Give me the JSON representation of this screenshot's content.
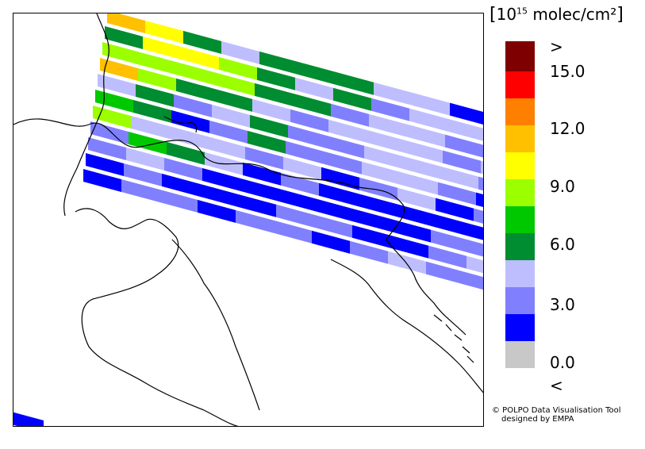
{
  "map": {
    "units_prefix": "[",
    "units_base": "10",
    "units_exp": "15",
    "units_rest": " molec/cm²",
    "units_suffix": "]",
    "credit_line1": "© POLPO Data Visualisation Tool",
    "credit_line2": "designed by EMPA"
  },
  "legend": {
    "labels": [
      ">",
      "15.0",
      "12.0",
      "9.0",
      "6.0",
      "3.0",
      "0.0",
      "<"
    ],
    "colors": [
      "#7f0000",
      "#ff0000",
      "#ff8000",
      "#ffc000",
      "#ffff00",
      "#9cff00",
      "#00c800",
      "#008c30",
      "#bebeff",
      "#8080ff",
      "#0000ff",
      "#c8c8c8"
    ]
  },
  "swaths": {
    "colors": {
      "o": "#ffc000",
      "y": "#ffff00",
      "L": "#9cff00",
      "g": "#00c800",
      "G": "#008c30",
      "l": "#bebeff",
      "m": "#8080ff",
      "b": "#0000ff",
      "r": "#ff0000"
    },
    "rows": [
      "oyGlGGGllbmlll",
      "GyyLGlGmlllll",
      "LLLLGGmllmlllm",
      "oLGGlmlllmlllL",
      "lGmlGmmlllmlm",
      "gGbmGmmllmbmm",
      "LlllmlbmlbmmL",
      "mgGlbmbbbbbbll",
      "mlmbbbbbbmmmGl",
      "bmbbbmmbbmlmm",
      "bmmbmmbmlmm",
      "b"
    ]
  }
}
